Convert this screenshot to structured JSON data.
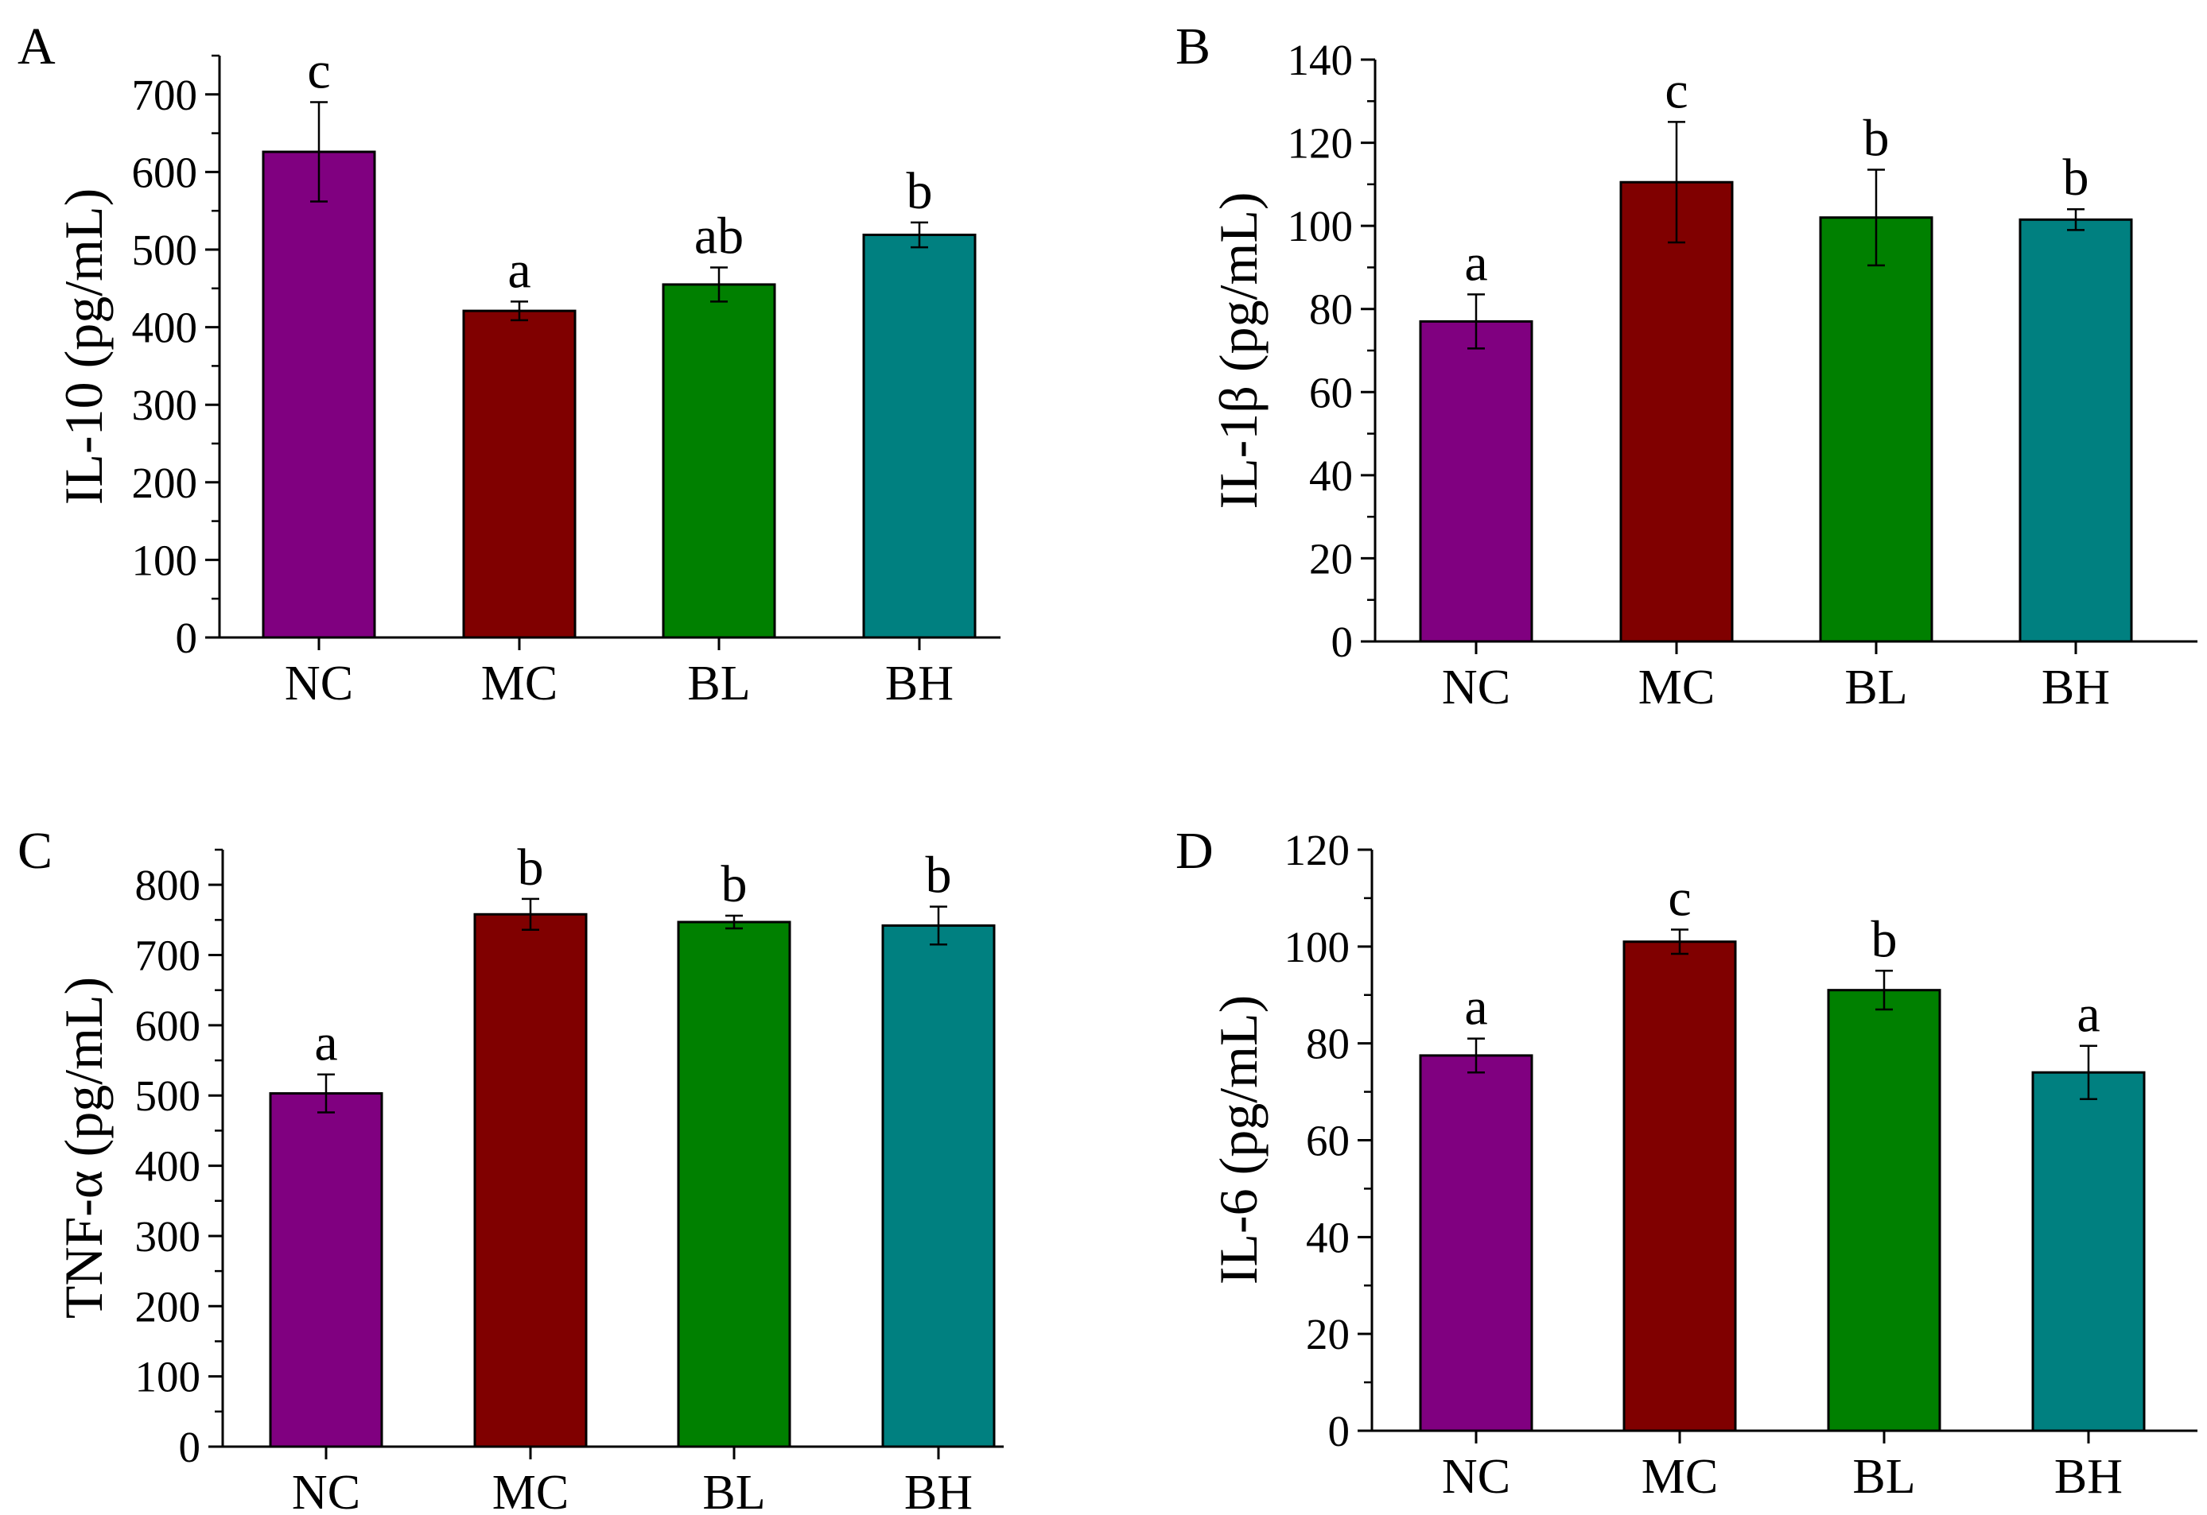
{
  "figure": {
    "colors": {
      "NC": "#800080",
      "MC": "#800000",
      "BL": "#008000",
      "BH": "#008080"
    }
  },
  "chart_data": [
    {
      "type": "bar",
      "panel": "A",
      "ylabel": "IL-10 (pg/mL)",
      "categories": [
        "NC",
        "MC",
        "BL",
        "BH"
      ],
      "values": [
        626,
        421,
        455,
        519
      ],
      "errors": [
        64,
        12,
        22,
        16
      ],
      "significance": [
        "c",
        "a",
        "ab",
        "b"
      ],
      "ylim": [
        0,
        750
      ],
      "yticks": [
        0,
        100,
        200,
        300,
        400,
        500,
        600,
        700
      ],
      "ytick_labels": [
        "0",
        "100",
        "200",
        "300",
        "400",
        "500",
        "600",
        "700"
      ]
    },
    {
      "type": "bar",
      "panel": "B",
      "ylabel": "IL-1β (pg/mL)",
      "categories": [
        "NC",
        "MC",
        "BL",
        "BH"
      ],
      "values": [
        77,
        110.5,
        102,
        101.5
      ],
      "errors": [
        6.5,
        14.5,
        11.5,
        2.5
      ],
      "significance": [
        "a",
        "c",
        "b",
        "b"
      ],
      "ylim": [
        0,
        140
      ],
      "yticks": [
        0,
        20,
        40,
        60,
        80,
        100,
        120,
        140
      ],
      "ytick_labels": [
        "0",
        "20",
        "40",
        "60",
        "80",
        "100",
        "120",
        "140"
      ]
    },
    {
      "type": "bar",
      "panel": "C",
      "ylabel": "TNF-α (pg/mL)",
      "categories": [
        "NC",
        "MC",
        "BL",
        "BH"
      ],
      "values": [
        503,
        758,
        747,
        742
      ],
      "errors": [
        27,
        22,
        9,
        27
      ],
      "significance": [
        "a",
        "b",
        "b",
        "b"
      ],
      "ylim": [
        0,
        850
      ],
      "yticks": [
        0,
        100,
        200,
        300,
        400,
        500,
        600,
        700,
        800
      ],
      "ytick_labels": [
        "0",
        "100",
        "200",
        "300",
        "400",
        "500",
        "600",
        "700",
        "800"
      ]
    },
    {
      "type": "bar",
      "panel": "D",
      "ylabel": "IL-6 (pg/mL)",
      "categories": [
        "NC",
        "MC",
        "BL",
        "BH"
      ],
      "values": [
        77.5,
        101,
        91,
        74
      ],
      "errors": [
        3.5,
        2.5,
        4,
        5.5
      ],
      "significance": [
        "a",
        "c",
        "b",
        "a"
      ],
      "ylim": [
        0,
        120
      ],
      "yticks": [
        0,
        20,
        40,
        60,
        80,
        100,
        120
      ],
      "ytick_labels": [
        "0",
        "20",
        "40",
        "60",
        "80",
        "100",
        "120"
      ]
    }
  ]
}
